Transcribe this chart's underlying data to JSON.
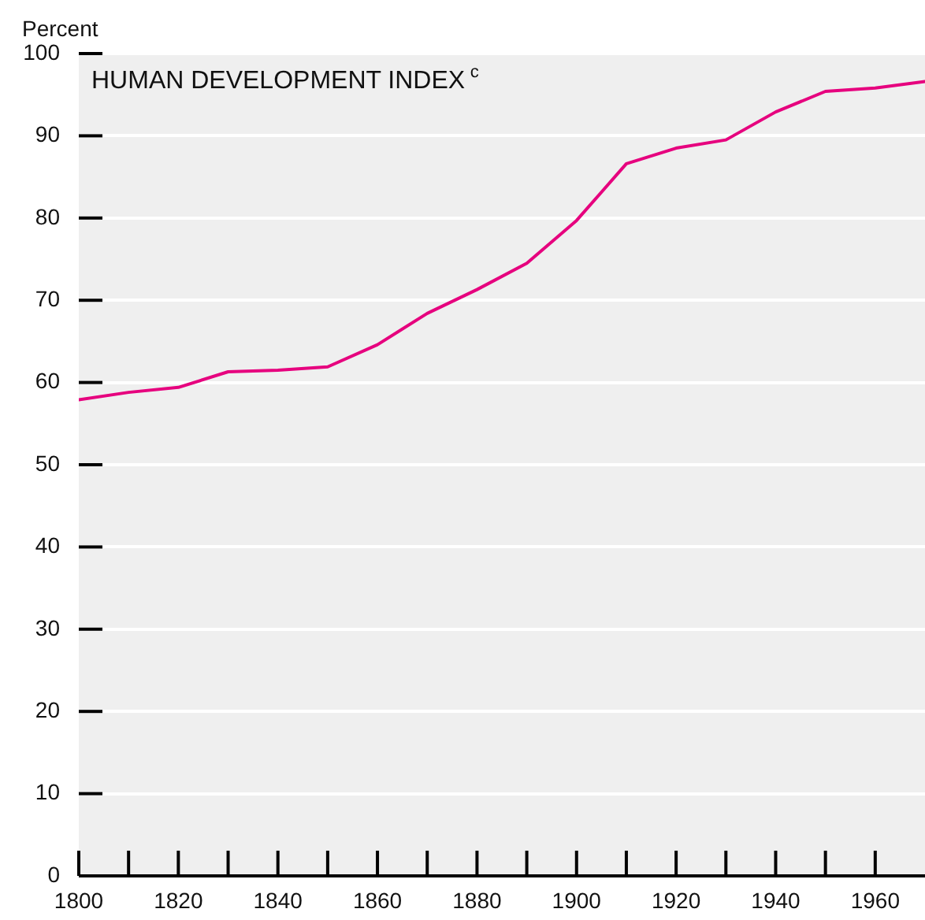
{
  "chart_data": {
    "type": "line",
    "title": "HUMAN DEVELOPMENT INDEX$^{c}$",
    "ylabel": "Percent",
    "x": [
      1800,
      1810,
      1820,
      1830,
      1840,
      1850,
      1860,
      1870,
      1880,
      1890,
      1900,
      1910,
      1920,
      1930,
      1940,
      1950,
      1960,
      1970
    ],
    "series": [
      {
        "color": "#e6007e",
        "values": [
          57.9,
          58.8,
          59.4,
          61.3,
          61.5,
          61.9,
          64.6,
          68.4,
          71.3,
          74.5,
          79.7,
          86.6,
          88.5,
          89.5,
          92.9,
          95.4,
          95.8,
          96.6
        ]
      }
    ],
    "xlim": [
      1800,
      1970
    ],
    "xticks": [
      1800,
      {
        "value": 1810,
        "label": null
      },
      1820,
      {
        "value": 1830,
        "label": null
      },
      1840,
      {
        "value": 1850,
        "label": null
      },
      1860,
      {
        "value": 1870,
        "label": null
      },
      1880,
      {
        "value": 1890,
        "label": null
      },
      1900,
      {
        "value": 1910,
        "label": null
      },
      1920,
      {
        "value": 1930,
        "label": null
      },
      1940,
      {
        "value": 1950,
        "label": null
      },
      1960
    ],
    "ylim": [
      0,
      100
    ],
    "yticks": [
      0,
      10,
      20,
      30,
      40,
      50,
      60,
      70,
      80,
      90,
      100
    ],
    "grid": "y",
    "legend": false,
    "marker": "none",
    "line_style": "solid"
  }
}
